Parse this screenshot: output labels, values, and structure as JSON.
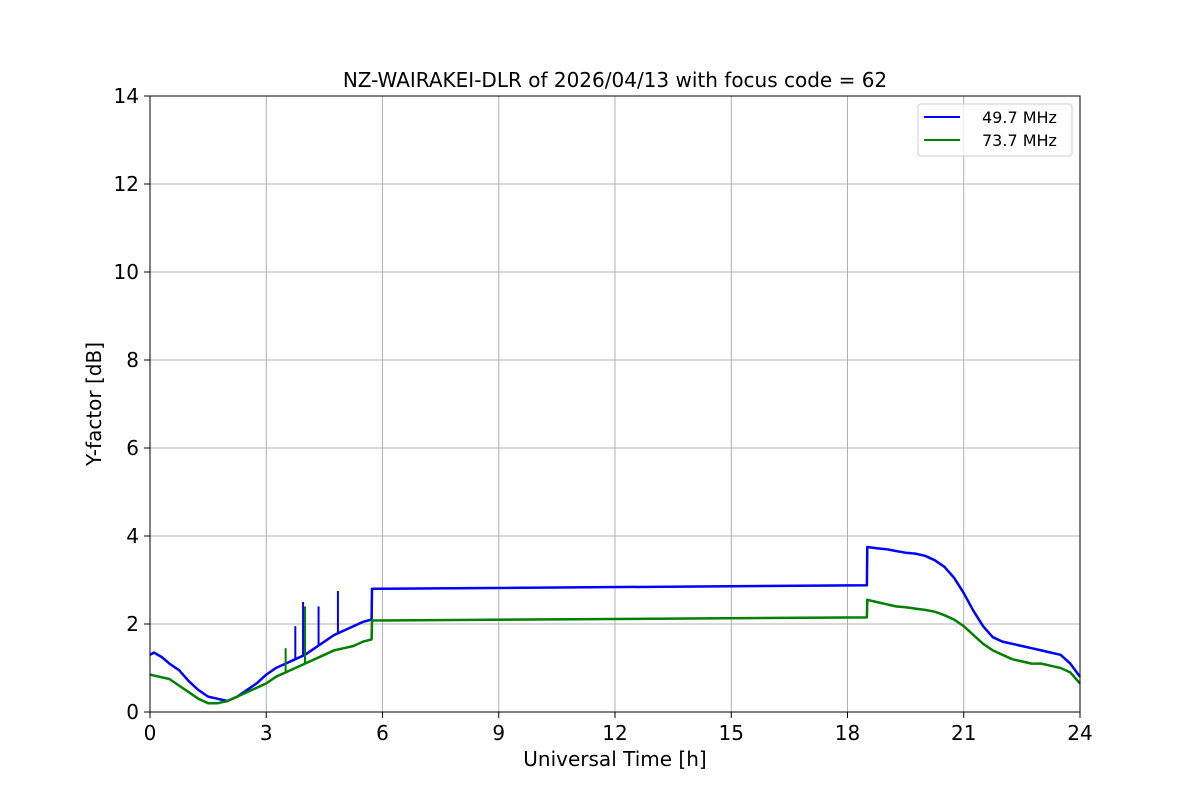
{
  "chart_data": {
    "type": "line",
    "title": "NZ-WAIRAKEI-DLR of 2026/04/13 with focus code = 62",
    "xlabel": "Universal Time [h]",
    "ylabel": "Y-factor [dB]",
    "xlim": [
      0,
      24
    ],
    "ylim": [
      0,
      14
    ],
    "xticks": [
      0,
      3,
      6,
      9,
      12,
      15,
      18,
      21,
      24
    ],
    "yticks": [
      0,
      2,
      4,
      6,
      8,
      10,
      12,
      14
    ],
    "grid": true,
    "legend_position": "top-right",
    "series": [
      {
        "name": "49.7 MHz",
        "color": "#0000ff",
        "x": [
          0,
          0.1,
          0.3,
          0.5,
          0.75,
          1.0,
          1.25,
          1.5,
          1.75,
          2.0,
          2.25,
          2.5,
          2.75,
          3.0,
          3.25,
          3.5,
          3.75,
          4.0,
          4.25,
          4.5,
          4.75,
          5.0,
          5.25,
          5.5,
          5.72,
          5.73,
          18.5,
          18.51,
          18.75,
          19.0,
          19.25,
          19.5,
          19.75,
          20.0,
          20.25,
          20.5,
          20.75,
          21.0,
          21.25,
          21.5,
          21.75,
          22.0,
          22.25,
          22.5,
          22.75,
          23.0,
          23.25,
          23.5,
          23.75,
          24.0
        ],
        "y": [
          1.3,
          1.35,
          1.25,
          1.1,
          0.95,
          0.7,
          0.5,
          0.35,
          0.3,
          0.25,
          0.35,
          0.5,
          0.65,
          0.85,
          1.0,
          1.1,
          1.2,
          1.3,
          1.45,
          1.6,
          1.75,
          1.85,
          1.95,
          2.05,
          2.1,
          2.8,
          2.88,
          3.75,
          3.72,
          3.7,
          3.66,
          3.62,
          3.6,
          3.55,
          3.45,
          3.3,
          3.05,
          2.7,
          2.3,
          1.95,
          1.7,
          1.6,
          1.55,
          1.5,
          1.45,
          1.4,
          1.35,
          1.3,
          1.1,
          0.8
        ]
      },
      {
        "name": "73.7 MHz",
        "color": "#008000",
        "x": [
          0,
          0.25,
          0.5,
          0.75,
          1.0,
          1.25,
          1.5,
          1.75,
          2.0,
          2.25,
          2.5,
          2.75,
          3.0,
          3.25,
          3.5,
          3.75,
          4.0,
          4.25,
          4.5,
          4.75,
          5.0,
          5.25,
          5.5,
          5.72,
          5.73,
          18.5,
          18.51,
          18.75,
          19.0,
          19.25,
          19.5,
          19.75,
          20.0,
          20.25,
          20.5,
          20.75,
          21.0,
          21.25,
          21.5,
          21.75,
          22.0,
          22.25,
          22.5,
          22.75,
          23.0,
          23.25,
          23.5,
          23.75,
          24.0
        ],
        "y": [
          0.85,
          0.8,
          0.75,
          0.6,
          0.45,
          0.3,
          0.2,
          0.2,
          0.25,
          0.35,
          0.45,
          0.55,
          0.65,
          0.8,
          0.9,
          1.0,
          1.1,
          1.2,
          1.3,
          1.4,
          1.45,
          1.5,
          1.6,
          1.65,
          2.08,
          2.15,
          2.55,
          2.5,
          2.45,
          2.4,
          2.38,
          2.35,
          2.32,
          2.28,
          2.2,
          2.1,
          1.95,
          1.75,
          1.55,
          1.4,
          1.3,
          1.2,
          1.15,
          1.1,
          1.1,
          1.05,
          1.0,
          0.9,
          0.65
        ]
      }
    ],
    "spikes": [
      {
        "series": 0,
        "x": 3.95,
        "y": 2.5
      },
      {
        "series": 0,
        "x": 4.35,
        "y": 2.4
      },
      {
        "series": 0,
        "x": 4.85,
        "y": 2.75
      },
      {
        "series": 0,
        "x": 3.75,
        "y": 1.95
      },
      {
        "series": 1,
        "x": 4.0,
        "y": 2.4
      },
      {
        "series": 1,
        "x": 3.5,
        "y": 1.45
      }
    ]
  }
}
